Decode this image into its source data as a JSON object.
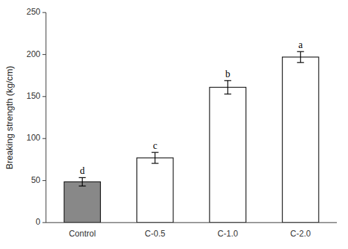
{
  "chart_data": {
    "type": "bar",
    "categories": [
      "Control",
      "C-0.5",
      "C-1.0",
      "C-2.0"
    ],
    "values": [
      48.5,
      77.0,
      161.0,
      197.0
    ],
    "errors": [
      5.0,
      6.5,
      8.0,
      6.5
    ],
    "annotations": [
      "d",
      "c",
      "b",
      "a"
    ],
    "ylabel": "Breaking strength (kg/cm)",
    "ylim": [
      0,
      250
    ],
    "yticks": [
      0,
      50,
      100,
      150,
      200,
      250
    ],
    "colors": [
      "#888888",
      "#ffffff",
      "#ffffff",
      "#ffffff"
    ],
    "grid": false
  }
}
